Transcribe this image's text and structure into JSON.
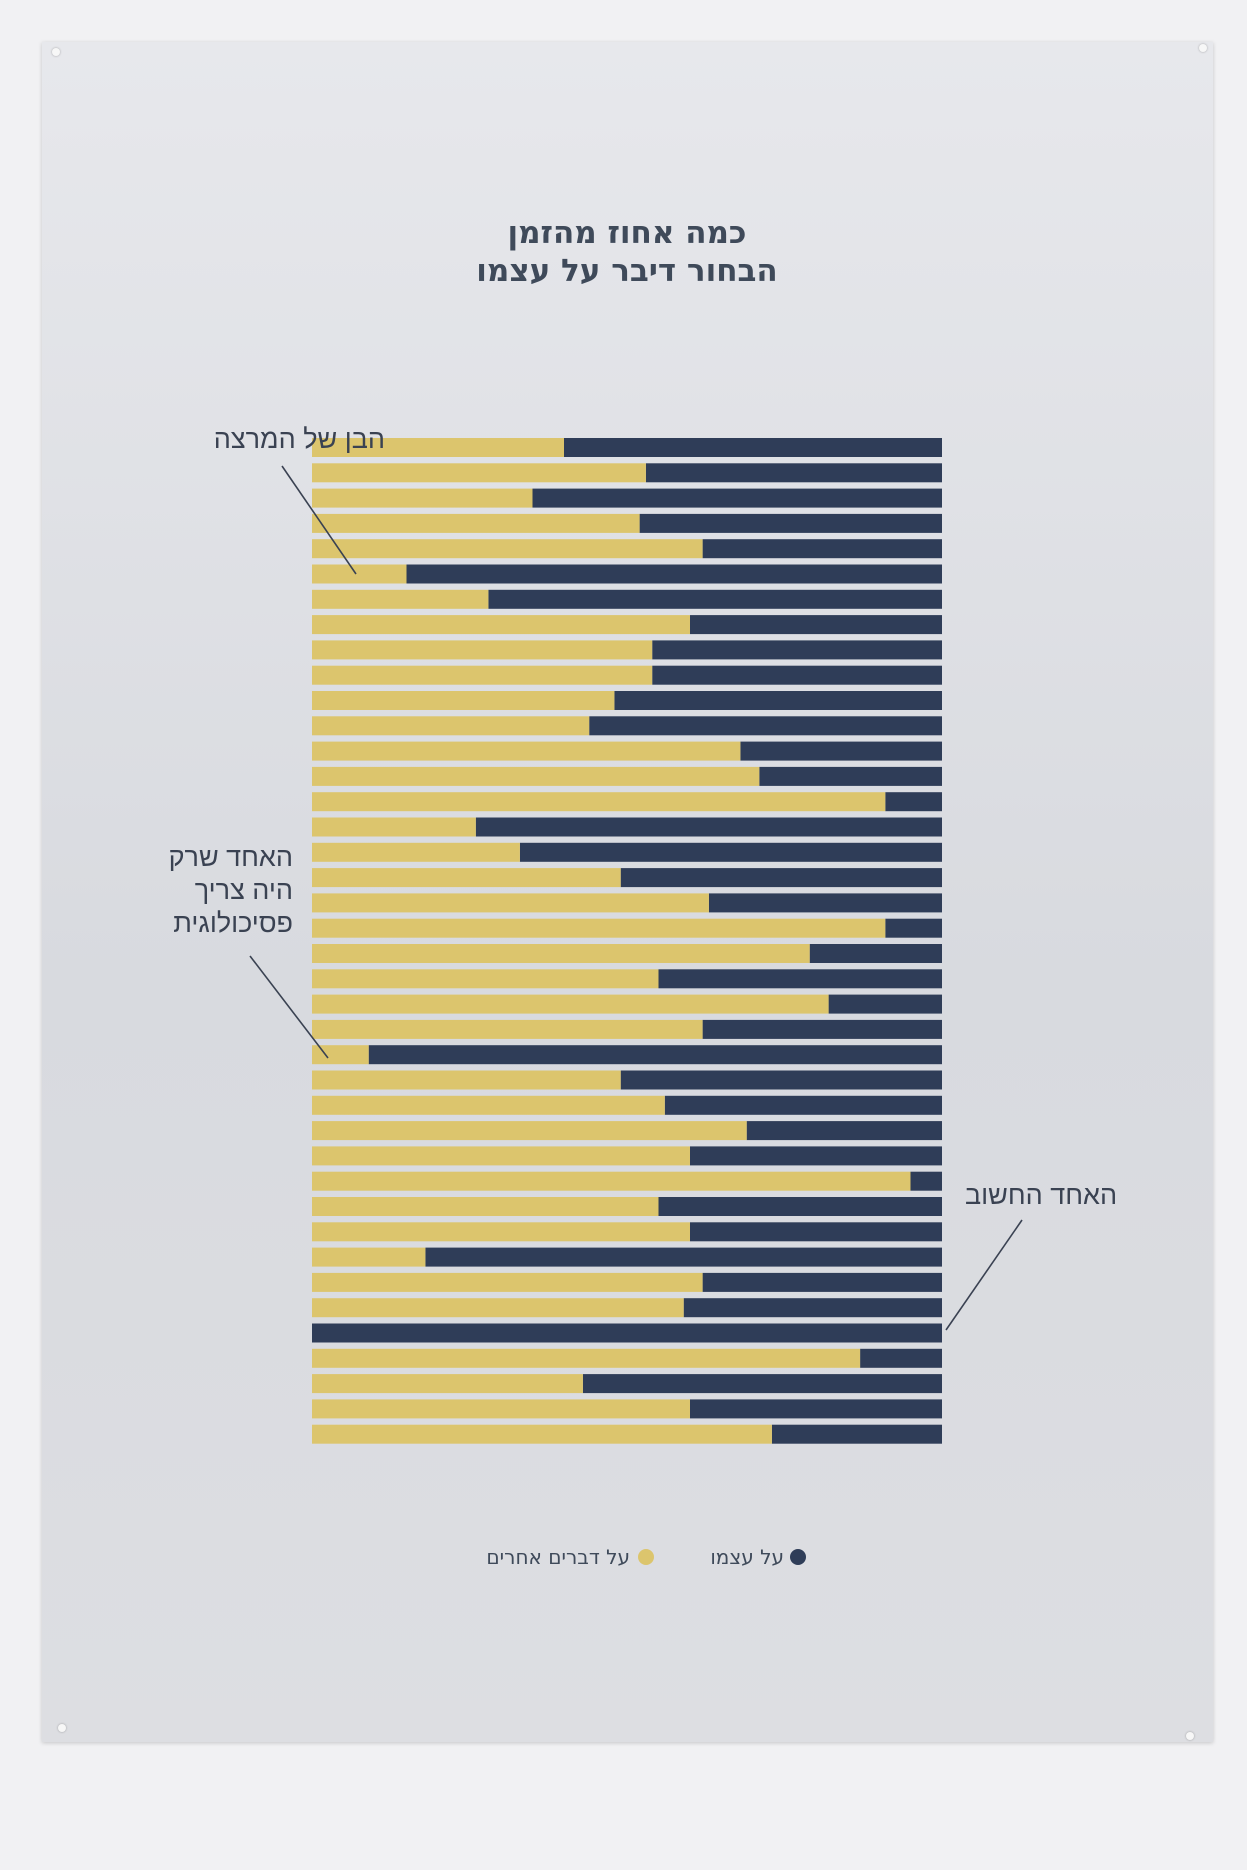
{
  "chart_data": {
    "type": "bar",
    "orientation": "horizontal",
    "stacked": true,
    "normalized": true,
    "title_lines": [
      "כמה אחוז מהזמן",
      "הבחור דיבר על עצמו"
    ],
    "xlabel": "",
    "ylabel": "",
    "xlim": [
      0,
      100
    ],
    "grid": false,
    "legend_position": "bottom-center",
    "colors": {
      "self": "#2f3d58",
      "other": "#dcc56d"
    },
    "series": [
      {
        "name": "על עצמו",
        "values": [
          60,
          47,
          65,
          48,
          38,
          85,
          72,
          40,
          46,
          46,
          52,
          56,
          32,
          29,
          9,
          74,
          67,
          51,
          37,
          9,
          21,
          45,
          18,
          38,
          91,
          51,
          44,
          31,
          40,
          5,
          45,
          40,
          82,
          38,
          41,
          100,
          13,
          57,
          40,
          27
        ]
      },
      {
        "name": "על דברים אחרים",
        "values": [
          40,
          53,
          35,
          52,
          62,
          15,
          28,
          60,
          54,
          54,
          48,
          44,
          68,
          71,
          91,
          26,
          33,
          49,
          63,
          91,
          79,
          55,
          82,
          62,
          9,
          49,
          56,
          69,
          60,
          95,
          55,
          60,
          18,
          62,
          59,
          0,
          87,
          43,
          60,
          73
        ]
      }
    ],
    "annotations": [
      {
        "row": 6,
        "lines": [
          "הבן של המרצה"
        ]
      },
      {
        "row": 25,
        "lines": [
          "האחד שרק",
          "היה צריך",
          "פסיכולוגית"
        ]
      },
      {
        "row": 36,
        "lines": [
          "האחד החשוב"
        ]
      }
    ]
  }
}
